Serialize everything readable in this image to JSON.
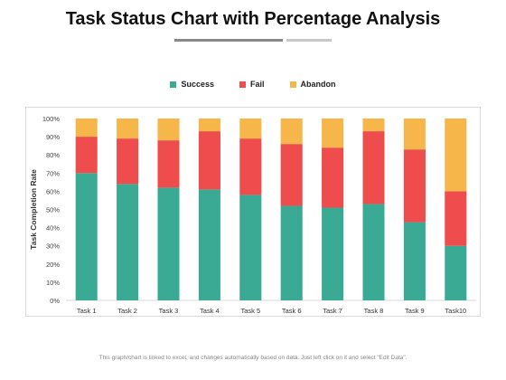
{
  "page": {
    "title": "Task Status Chart with Percentage Analysis",
    "footnote": "This graph/chart is linked to excel, and changes automatically based on data. Just left click on it and select \"Edit Data\"."
  },
  "colors": {
    "success": "#3aaa94",
    "fail": "#ef4d4d",
    "abandon": "#f7b64a",
    "underline_dark": "#888888",
    "underline_light": "#c8c8c8"
  },
  "chart_data": {
    "type": "bar",
    "stacked": true,
    "title": "",
    "xlabel": "",
    "ylabel": "Task Completion Rate",
    "ylim": [
      0,
      100
    ],
    "yticks": [
      "0%",
      "10%",
      "20%",
      "30%",
      "40%",
      "50%",
      "60%",
      "70%",
      "80%",
      "90%",
      "100%"
    ],
    "legend_position": "top",
    "grid": false,
    "categories": [
      "Task 1",
      "Task 2",
      "Task 3",
      "Task 4",
      "Task 5",
      "Task 6",
      "Task 7",
      "Task 8",
      "Task 9",
      "Task10"
    ],
    "series": [
      {
        "name": "Success",
        "color": "#3aaa94",
        "values": [
          70,
          64,
          62,
          61,
          58,
          52,
          51,
          53,
          43,
          30
        ]
      },
      {
        "name": "Fail",
        "color": "#ef4d4d",
        "values": [
          20,
          25,
          26,
          32,
          31,
          34,
          33,
          40,
          40,
          30
        ]
      },
      {
        "name": "Abandon",
        "color": "#f7b64a",
        "values": [
          10,
          11,
          12,
          7,
          11,
          14,
          16,
          7,
          17,
          40
        ]
      }
    ]
  }
}
